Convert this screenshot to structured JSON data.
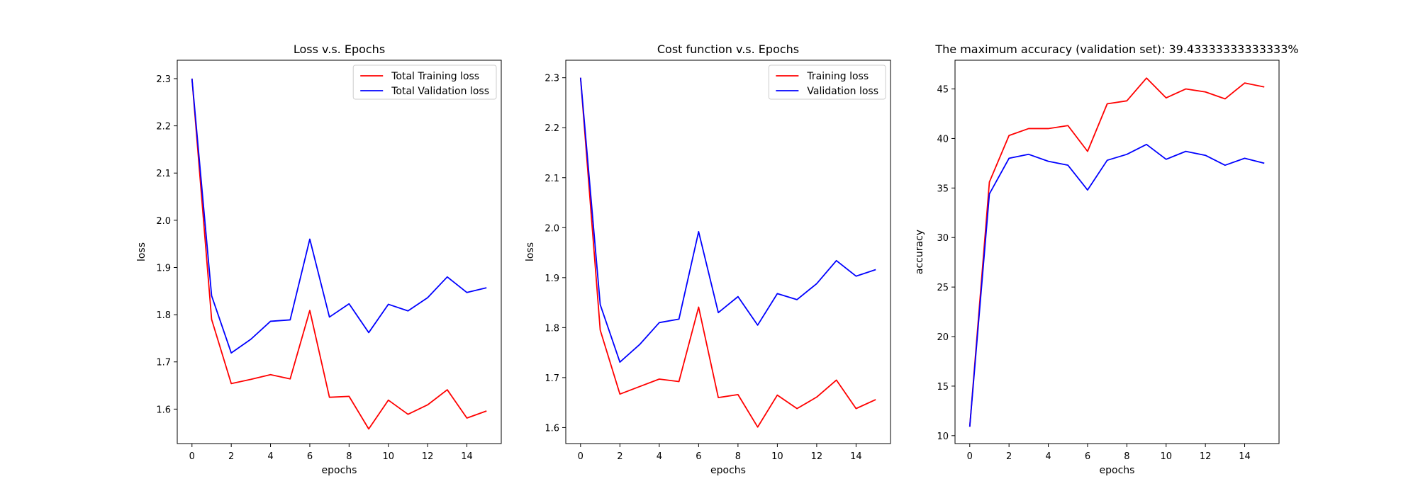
{
  "figure": {
    "series_colors": {
      "red": "#ff0000",
      "blue": "#0000ff"
    }
  },
  "chart_data": [
    {
      "type": "line",
      "title": "Loss v.s. Epochs",
      "xlabel": "epochs",
      "ylabel": "loss",
      "xlim": [
        -0.75,
        15.75
      ],
      "ylim": [
        1.527,
        2.339
      ],
      "xticks": [
        0,
        2,
        4,
        6,
        8,
        10,
        12,
        14
      ],
      "yticks": [
        1.6,
        1.7,
        1.8,
        1.9,
        2.0,
        2.1,
        2.2,
        2.3
      ],
      "ytick_decimals": 1,
      "grid": false,
      "legend": "top-right",
      "x": [
        0,
        1,
        2,
        3,
        4,
        5,
        6,
        7,
        8,
        9,
        10,
        11,
        12,
        13,
        14,
        15
      ],
      "series": [
        {
          "name": "Total Training loss",
          "color": "#ff0000",
          "values": [
            2.3,
            1.79,
            1.654,
            1.663,
            1.673,
            1.664,
            1.809,
            1.625,
            1.627,
            1.558,
            1.619,
            1.589,
            1.609,
            1.641,
            1.581,
            1.596
          ]
        },
        {
          "name": "Total Validation loss",
          "color": "#0000ff",
          "values": [
            2.3,
            1.84,
            1.719,
            1.748,
            1.786,
            1.789,
            1.96,
            1.795,
            1.823,
            1.762,
            1.822,
            1.808,
            1.836,
            1.88,
            1.847,
            1.857
          ]
        }
      ]
    },
    {
      "type": "line",
      "title": "Cost function v.s. Epochs",
      "xlabel": "epochs",
      "ylabel": "loss",
      "xlim": [
        -0.75,
        15.75
      ],
      "ylim": [
        1.568,
        2.335
      ],
      "xticks": [
        0,
        2,
        4,
        6,
        8,
        10,
        12,
        14
      ],
      "yticks": [
        1.6,
        1.7,
        1.8,
        1.9,
        2.0,
        2.1,
        2.2,
        2.3
      ],
      "ytick_decimals": 1,
      "grid": false,
      "legend": "top-right",
      "x": [
        0,
        1,
        2,
        3,
        4,
        5,
        6,
        7,
        8,
        9,
        10,
        11,
        12,
        13,
        14,
        15
      ],
      "series": [
        {
          "name": "Training loss",
          "color": "#ff0000",
          "values": [
            2.3,
            1.795,
            1.667,
            1.682,
            1.697,
            1.692,
            1.841,
            1.66,
            1.666,
            1.601,
            1.665,
            1.638,
            1.661,
            1.695,
            1.638,
            1.656
          ]
        },
        {
          "name": "Validation loss",
          "color": "#0000ff",
          "values": [
            2.3,
            1.846,
            1.731,
            1.766,
            1.81,
            1.817,
            1.992,
            1.83,
            1.862,
            1.805,
            1.868,
            1.856,
            1.888,
            1.934,
            1.903,
            1.916
          ]
        }
      ]
    },
    {
      "type": "line",
      "title": "The maximum accuracy (validation set): 39.43333333333333%",
      "xlabel": "epochs",
      "ylabel": "accuracy",
      "xlim": [
        -0.75,
        15.75
      ],
      "ylim": [
        9.2,
        47.9
      ],
      "xticks": [
        0,
        2,
        4,
        6,
        8,
        10,
        12,
        14
      ],
      "yticks": [
        10,
        15,
        20,
        25,
        30,
        35,
        40,
        45
      ],
      "ytick_decimals": 0,
      "grid": false,
      "legend": "none",
      "x": [
        0,
        1,
        2,
        3,
        4,
        5,
        6,
        7,
        8,
        9,
        10,
        11,
        12,
        13,
        14,
        15
      ],
      "series": [
        {
          "color": "#ff0000",
          "values": [
            10.9,
            35.6,
            40.3,
            41.0,
            41.0,
            41.3,
            38.7,
            43.5,
            43.8,
            46.1,
            44.1,
            45.0,
            44.7,
            44.0,
            45.6,
            45.2
          ]
        },
        {
          "color": "#0000ff",
          "values": [
            10.9,
            34.4,
            38.0,
            38.4,
            37.7,
            37.3,
            34.8,
            37.8,
            38.4,
            39.4,
            37.9,
            38.7,
            38.3,
            37.3,
            38.0,
            37.5
          ]
        }
      ]
    }
  ]
}
